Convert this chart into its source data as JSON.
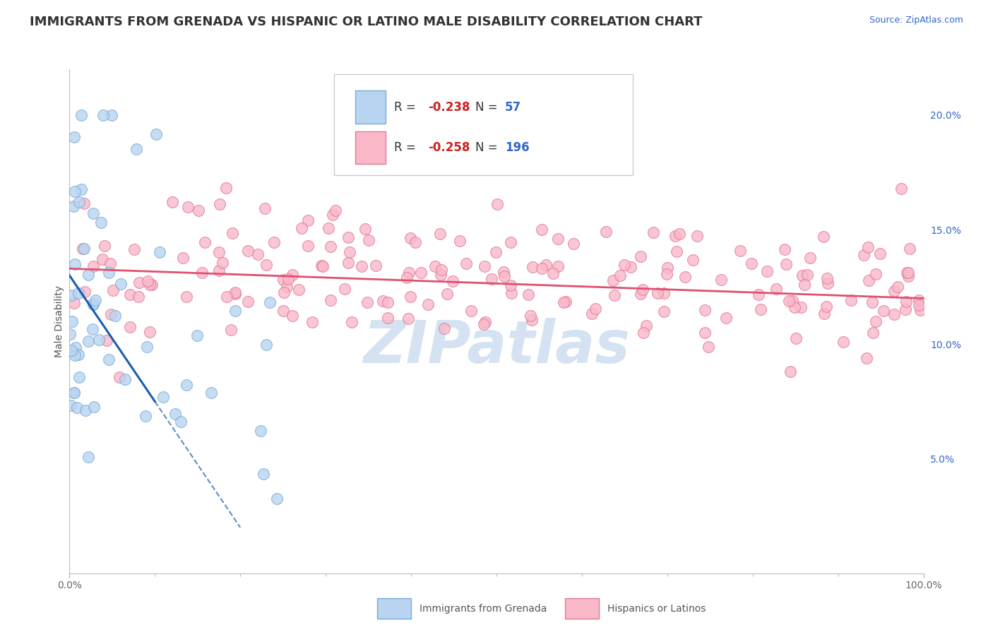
{
  "title": "IMMIGRANTS FROM GRENADA VS HISPANIC OR LATINO MALE DISABILITY CORRELATION CHART",
  "source": "Source: ZipAtlas.com",
  "ylabel": "Male Disability",
  "watermark": "ZIPatlas",
  "series1": {
    "label": "Immigrants from Grenada",
    "R": -0.238,
    "N": 57,
    "color": "#b8d4f0",
    "edge_color": "#7aaad8",
    "trend_color": "#1a5cb0",
    "trend_style": "-"
  },
  "series2": {
    "label": "Hispanics or Latinos",
    "R": -0.258,
    "N": 196,
    "color": "#f9b8c8",
    "edge_color": "#e07898",
    "trend_color": "#e05070",
    "trend_style": "-"
  },
  "xlim": [
    0,
    100
  ],
  "ylim": [
    0,
    22
  ],
  "background_color": "#ffffff",
  "grid_color": "#dddddd",
  "title_color": "#333333",
  "legend_R_color": "#cc2222",
  "legend_N_color": "#3366cc",
  "title_fontsize": 13,
  "axis_label_fontsize": 10,
  "tick_fontsize": 10,
  "watermark_color": "#b8d0e8",
  "watermark_fontsize": 60,
  "seed": 42
}
